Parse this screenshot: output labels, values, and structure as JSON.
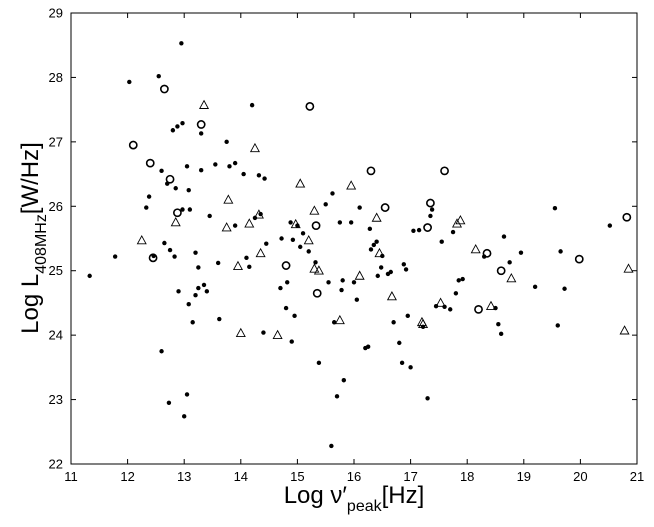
{
  "chart_data": {
    "type": "scatter",
    "xlim": [
      11,
      21
    ],
    "ylim": [
      22,
      29
    ],
    "xticks": [
      "11",
      "12",
      "13",
      "14",
      "15",
      "16",
      "17",
      "18",
      "19",
      "20",
      "21"
    ],
    "yticks": [
      "22",
      "23",
      "24",
      "25",
      "26",
      "27",
      "28",
      "29"
    ],
    "xlabel": {
      "main": "Log ν′",
      "sub": "peak",
      "unit": "[Hz]"
    },
    "ylabel": {
      "main": "Log L",
      "sub": "408MHz",
      "unit": "[W/Hz]"
    },
    "grid": false,
    "legend": "none",
    "series": [
      {
        "marker": "filled-dot",
        "points": [
          [
            11.33,
            24.92
          ],
          [
            11.78,
            25.22
          ],
          [
            12.03,
            27.93
          ],
          [
            12.33,
            25.98
          ],
          [
            12.38,
            26.15
          ],
          [
            12.46,
            25.23
          ],
          [
            12.55,
            28.02
          ],
          [
            12.6,
            26.55
          ],
          [
            12.6,
            23.75
          ],
          [
            12.65,
            25.43
          ],
          [
            12.7,
            26.35
          ],
          [
            12.73,
            22.95
          ],
          [
            12.75,
            25.32
          ],
          [
            12.8,
            27.18
          ],
          [
            12.83,
            25.22
          ],
          [
            12.85,
            26.28
          ],
          [
            12.88,
            27.24
          ],
          [
            12.9,
            24.68
          ],
          [
            12.95,
            28.53
          ],
          [
            12.97,
            27.29
          ],
          [
            12.97,
            25.95
          ],
          [
            13,
            22.74
          ],
          [
            13.05,
            26.62
          ],
          [
            13.05,
            23.08
          ],
          [
            13.08,
            24.48
          ],
          [
            13.08,
            26.25
          ],
          [
            13.1,
            25.95
          ],
          [
            13.15,
            24.2
          ],
          [
            13.2,
            24.62
          ],
          [
            13.2,
            25.28
          ],
          [
            13.25,
            24.73
          ],
          [
            13.25,
            25.05
          ],
          [
            13.3,
            27.13
          ],
          [
            13.3,
            26.56
          ],
          [
            13.35,
            24.78
          ],
          [
            13.4,
            24.68
          ],
          [
            13.45,
            25.85
          ],
          [
            13.55,
            26.65
          ],
          [
            13.6,
            25.12
          ],
          [
            13.62,
            24.25
          ],
          [
            13.75,
            27
          ],
          [
            13.8,
            26.62
          ],
          [
            13.9,
            26.67
          ],
          [
            13.9,
            25.7
          ],
          [
            14.05,
            26.5
          ],
          [
            14.1,
            25.2
          ],
          [
            14.15,
            25.06
          ],
          [
            14.2,
            27.57
          ],
          [
            14.25,
            25.82
          ],
          [
            14.32,
            26.48
          ],
          [
            14.35,
            25.88
          ],
          [
            14.4,
            24.04
          ],
          [
            14.42,
            26.43
          ],
          [
            14.45,
            25.42
          ],
          [
            14.7,
            24.73
          ],
          [
            14.72,
            25.5
          ],
          [
            14.8,
            24.42
          ],
          [
            14.82,
            24.82
          ],
          [
            14.88,
            25.75
          ],
          [
            14.9,
            23.9
          ],
          [
            14.92,
            25.48
          ],
          [
            14.95,
            24.3
          ],
          [
            15.0,
            25.7
          ],
          [
            15.05,
            25.37
          ],
          [
            15.1,
            25.58
          ],
          [
            15.2,
            25.3
          ],
          [
            15.32,
            25.13
          ],
          [
            15.38,
            23.57
          ],
          [
            15.5,
            26.03
          ],
          [
            15.55,
            24.82
          ],
          [
            15.6,
            22.28
          ],
          [
            15.62,
            26.2
          ],
          [
            15.65,
            24.2
          ],
          [
            15.7,
            23.05
          ],
          [
            15.75,
            25.75
          ],
          [
            15.78,
            24.7
          ],
          [
            15.8,
            24.85
          ],
          [
            15.82,
            23.3
          ],
          [
            15.95,
            25.75
          ],
          [
            16,
            24.82
          ],
          [
            16.05,
            24.55
          ],
          [
            16.1,
            25.98
          ],
          [
            16.2,
            23.8
          ],
          [
            16.25,
            23.82
          ],
          [
            16.28,
            25.65
          ],
          [
            16.3,
            25.33
          ],
          [
            16.35,
            25.4
          ],
          [
            16.4,
            25.45
          ],
          [
            16.42,
            24.92
          ],
          [
            16.48,
            25.05
          ],
          [
            16.5,
            25.23
          ],
          [
            16.6,
            24.95
          ],
          [
            16.65,
            24.98
          ],
          [
            16.7,
            24.2
          ],
          [
            16.8,
            23.88
          ],
          [
            16.85,
            23.57
          ],
          [
            16.88,
            25.1
          ],
          [
            16.92,
            25.02
          ],
          [
            16.95,
            24.3
          ],
          [
            17,
            23.5
          ],
          [
            17.05,
            25.62
          ],
          [
            17.15,
            25.63
          ],
          [
            17.22,
            24.13
          ],
          [
            17.3,
            23.02
          ],
          [
            17.35,
            25.85
          ],
          [
            17.38,
            25.95
          ],
          [
            17.45,
            24.45
          ],
          [
            17.55,
            25.45
          ],
          [
            17.6,
            24.44
          ],
          [
            17.7,
            24.4
          ],
          [
            17.75,
            25.6
          ],
          [
            17.8,
            24.65
          ],
          [
            17.85,
            24.85
          ],
          [
            17.92,
            24.87
          ],
          [
            18.3,
            25.22
          ],
          [
            18.5,
            24.42
          ],
          [
            18.55,
            24.17
          ],
          [
            18.6,
            24.02
          ],
          [
            18.65,
            25.53
          ],
          [
            18.75,
            25.13
          ],
          [
            18.95,
            25.28
          ],
          [
            19.2,
            24.75
          ],
          [
            19.55,
            25.97
          ],
          [
            19.6,
            24.15
          ],
          [
            19.65,
            25.3
          ],
          [
            19.72,
            24.72
          ],
          [
            20.52,
            25.7
          ]
        ]
      },
      {
        "marker": "open-circle",
        "points": [
          [
            12.1,
            26.95
          ],
          [
            12.4,
            26.67
          ],
          [
            12.45,
            25.2
          ],
          [
            12.65,
            27.82
          ],
          [
            12.75,
            26.42
          ],
          [
            12.88,
            25.9
          ],
          [
            13.3,
            27.27
          ],
          [
            14.8,
            25.08
          ],
          [
            15.22,
            27.55
          ],
          [
            15.33,
            25.7
          ],
          [
            15.35,
            24.65
          ],
          [
            16.3,
            26.55
          ],
          [
            16.55,
            25.98
          ],
          [
            17.3,
            25.67
          ],
          [
            17.35,
            26.05
          ],
          [
            17.6,
            26.55
          ],
          [
            18.2,
            24.4
          ],
          [
            18.35,
            25.27
          ],
          [
            18.6,
            25.0
          ],
          [
            19.98,
            25.18
          ],
          [
            20.82,
            25.83
          ]
        ]
      },
      {
        "marker": "open-triangle",
        "points": [
          [
            12.25,
            25.47
          ],
          [
            12.85,
            25.75
          ],
          [
            13.35,
            27.57
          ],
          [
            13.75,
            25.67
          ],
          [
            13.78,
            26.1
          ],
          [
            13.95,
            25.07
          ],
          [
            14.0,
            24.03
          ],
          [
            14.15,
            25.73
          ],
          [
            14.25,
            26.9
          ],
          [
            14.32,
            25.87
          ],
          [
            14.35,
            25.27
          ],
          [
            14.65,
            24.0
          ],
          [
            14.97,
            25.72
          ],
          [
            15.05,
            26.35
          ],
          [
            15.2,
            25.47
          ],
          [
            15.3,
            25.93
          ],
          [
            15.3,
            25.03
          ],
          [
            15.38,
            25.0
          ],
          [
            15.75,
            24.23
          ],
          [
            15.95,
            26.32
          ],
          [
            16.1,
            24.92
          ],
          [
            16.4,
            25.82
          ],
          [
            16.45,
            25.27
          ],
          [
            16.67,
            24.6
          ],
          [
            17.2,
            24.2
          ],
          [
            17.22,
            24.17
          ],
          [
            17.53,
            24.5
          ],
          [
            17.82,
            25.73
          ],
          [
            17.88,
            25.78
          ],
          [
            18.15,
            25.33
          ],
          [
            18.42,
            24.45
          ],
          [
            18.78,
            24.88
          ],
          [
            20.78,
            24.07
          ],
          [
            20.85,
            25.03
          ]
        ]
      }
    ]
  }
}
